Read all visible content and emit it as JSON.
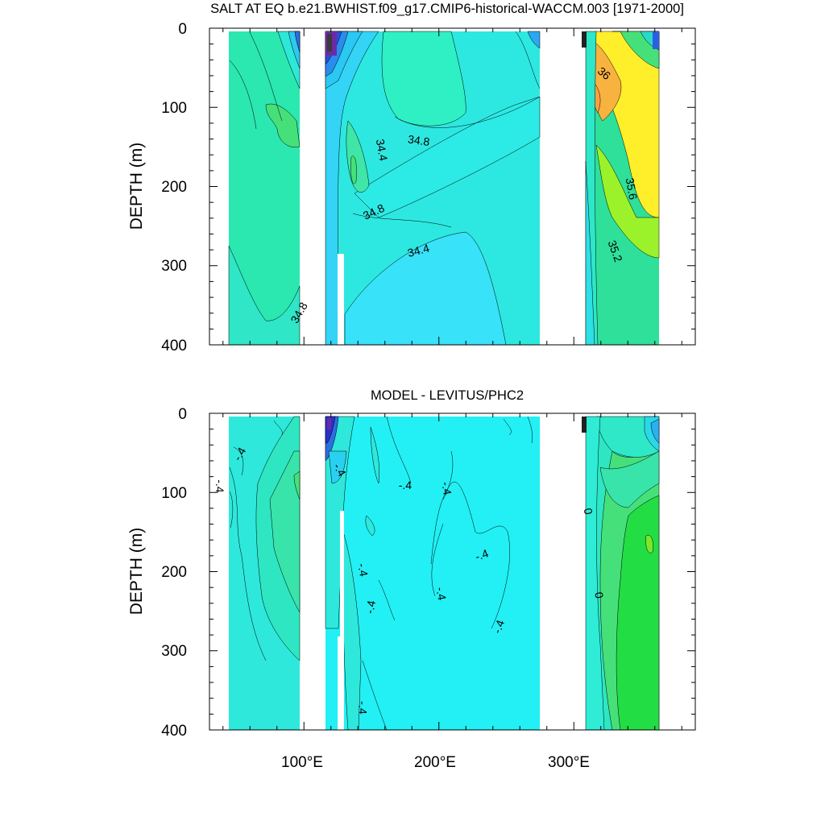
{
  "chart_data": [
    {
      "type": "heatmap",
      "title": "SALT AT EQ b.e21.BWHIST.f09_g17.CMIP6-historical-WACCM.003 [1971-2000]",
      "ylabel": "DEPTH (m)",
      "xlim": [
        30,
        390
      ],
      "ylim": [
        400,
        0
      ],
      "y_ticks": [
        "0",
        "100",
        "200",
        "300",
        "400"
      ],
      "x_ticks": [
        100,
        200,
        300
      ],
      "x_tick_labels": [],
      "contour_labels": [
        {
          "text": "34.8",
          "x": 97,
          "y": 360,
          "rotate": -60
        },
        {
          "text": "34.4",
          "x": 157,
          "y": 154,
          "rotate": 80
        },
        {
          "text": "34.8",
          "x": 185,
          "y": 143,
          "rotate": 8
        },
        {
          "text": "34.8",
          "x": 152,
          "y": 233,
          "rotate": -25
        },
        {
          "text": "34.4",
          "x": 185,
          "y": 282,
          "rotate": -15
        },
        {
          "text": "36",
          "x": 322,
          "y": 58,
          "rotate": 40
        },
        {
          "text": "35.6",
          "x": 342,
          "y": 203,
          "rotate": 80
        },
        {
          "text": "35.2",
          "x": 330,
          "y": 282,
          "rotate": 70
        }
      ]
    },
    {
      "type": "heatmap",
      "title": "MODEL - LEVITUS/PHC2",
      "ylabel": "DEPTH (m)",
      "xlim": [
        30,
        390
      ],
      "ylim": [
        400,
        0
      ],
      "y_ticks": [
        "0",
        "100",
        "200",
        "300",
        "400"
      ],
      "x_ticks": [
        100,
        200,
        300
      ],
      "x_tick_labels": [
        "100°E",
        "200°E",
        "300°E"
      ],
      "contour_labels": [
        {
          "text": "-.4",
          "x": 53,
          "y": 52,
          "rotate": -60
        },
        {
          "text": "-.4",
          "x": 37,
          "y": 92,
          "rotate": 90
        },
        {
          "text": "-.4",
          "x": 126,
          "y": 72,
          "rotate": 60
        },
        {
          "text": "-.4",
          "x": 175,
          "y": 92,
          "rotate": 0
        },
        {
          "text": "-.4",
          "x": 205,
          "y": 95,
          "rotate": 80
        },
        {
          "text": "-.4",
          "x": 232,
          "y": 180,
          "rotate": -20
        },
        {
          "text": "-.4",
          "x": 143,
          "y": 198,
          "rotate": 80
        },
        {
          "text": "-.4",
          "x": 201,
          "y": 228,
          "rotate": 80
        },
        {
          "text": "-.4",
          "x": 150,
          "y": 245,
          "rotate": -80
        },
        {
          "text": "-.4",
          "x": 245,
          "y": 270,
          "rotate": -70
        },
        {
          "text": "-.4",
          "x": 143,
          "y": 372,
          "rotate": 90
        },
        {
          "text": "0",
          "x": 310,
          "y": 124,
          "rotate": 80
        },
        {
          "text": "0",
          "x": 318,
          "y": 230,
          "rotate": 80
        }
      ]
    }
  ]
}
